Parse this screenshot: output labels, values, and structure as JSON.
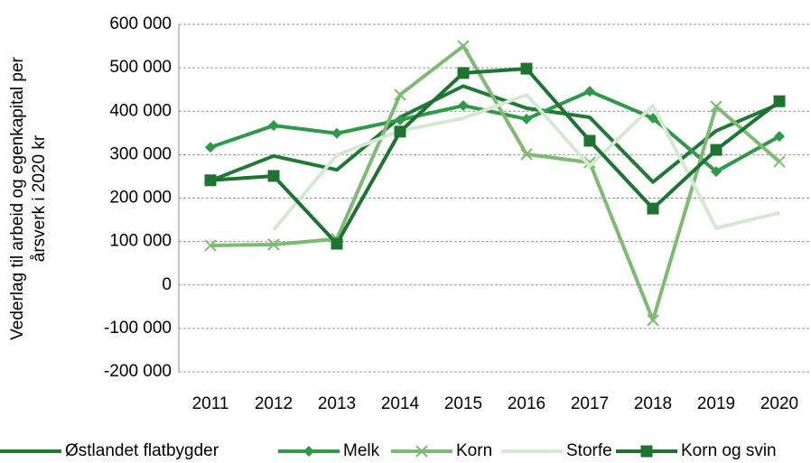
{
  "chart_data": {
    "type": "line",
    "ylabel": [
      "Vederlag til arbeid og egenkapital per",
      "årsverk i 2020 kr"
    ],
    "categories": [
      "2011",
      "2012",
      "2013",
      "2014",
      "2015",
      "2016",
      "2017",
      "2018",
      "2019",
      "2020"
    ],
    "series": [
      {
        "name": "Østlandet flatbygder",
        "color": "#1e7b34",
        "marker": "none",
        "values": [
          240000,
          297000,
          265000,
          386000,
          458000,
          407000,
          386000,
          237000,
          355000,
          417000
        ]
      },
      {
        "name": "Melk",
        "color": "#2e9a48",
        "marker": "diamond",
        "values": [
          317000,
          367000,
          349000,
          380000,
          413000,
          382000,
          446000,
          384000,
          261000,
          342000
        ]
      },
      {
        "name": "Korn",
        "color": "#7dbb72",
        "marker": "x",
        "values": [
          91000,
          93000,
          106000,
          438000,
          550000,
          301000,
          282000,
          -81000,
          411000,
          284000
        ]
      },
      {
        "name": "Storfe",
        "color": "#d4ead0",
        "marker": "none",
        "values": [
          null,
          127000,
          299000,
          355000,
          384000,
          438000,
          274000,
          413000,
          131000,
          166000
        ]
      },
      {
        "name": "Korn og svin",
        "color": "#1c7430",
        "marker": "square",
        "values": [
          241000,
          251000,
          95000,
          353000,
          488000,
          498000,
          332000,
          176000,
          311000,
          423000
        ]
      }
    ],
    "ylim": [
      -200000,
      600000
    ],
    "yticks": [
      {
        "value": -200000,
        "label": "-200 000"
      },
      {
        "value": -100000,
        "label": "-100 000"
      },
      0,
      {
        "value": 100000,
        "label": "100 000"
      },
      {
        "value": 200000,
        "label": "200 000"
      },
      {
        "value": 300000,
        "label": "300 000"
      },
      {
        "value": 400000,
        "label": "400 000"
      },
      {
        "value": 500000,
        "label": "500 000"
      },
      {
        "value": 600000,
        "label": "600 000"
      }
    ],
    "grid": true,
    "legend": "bottom"
  }
}
